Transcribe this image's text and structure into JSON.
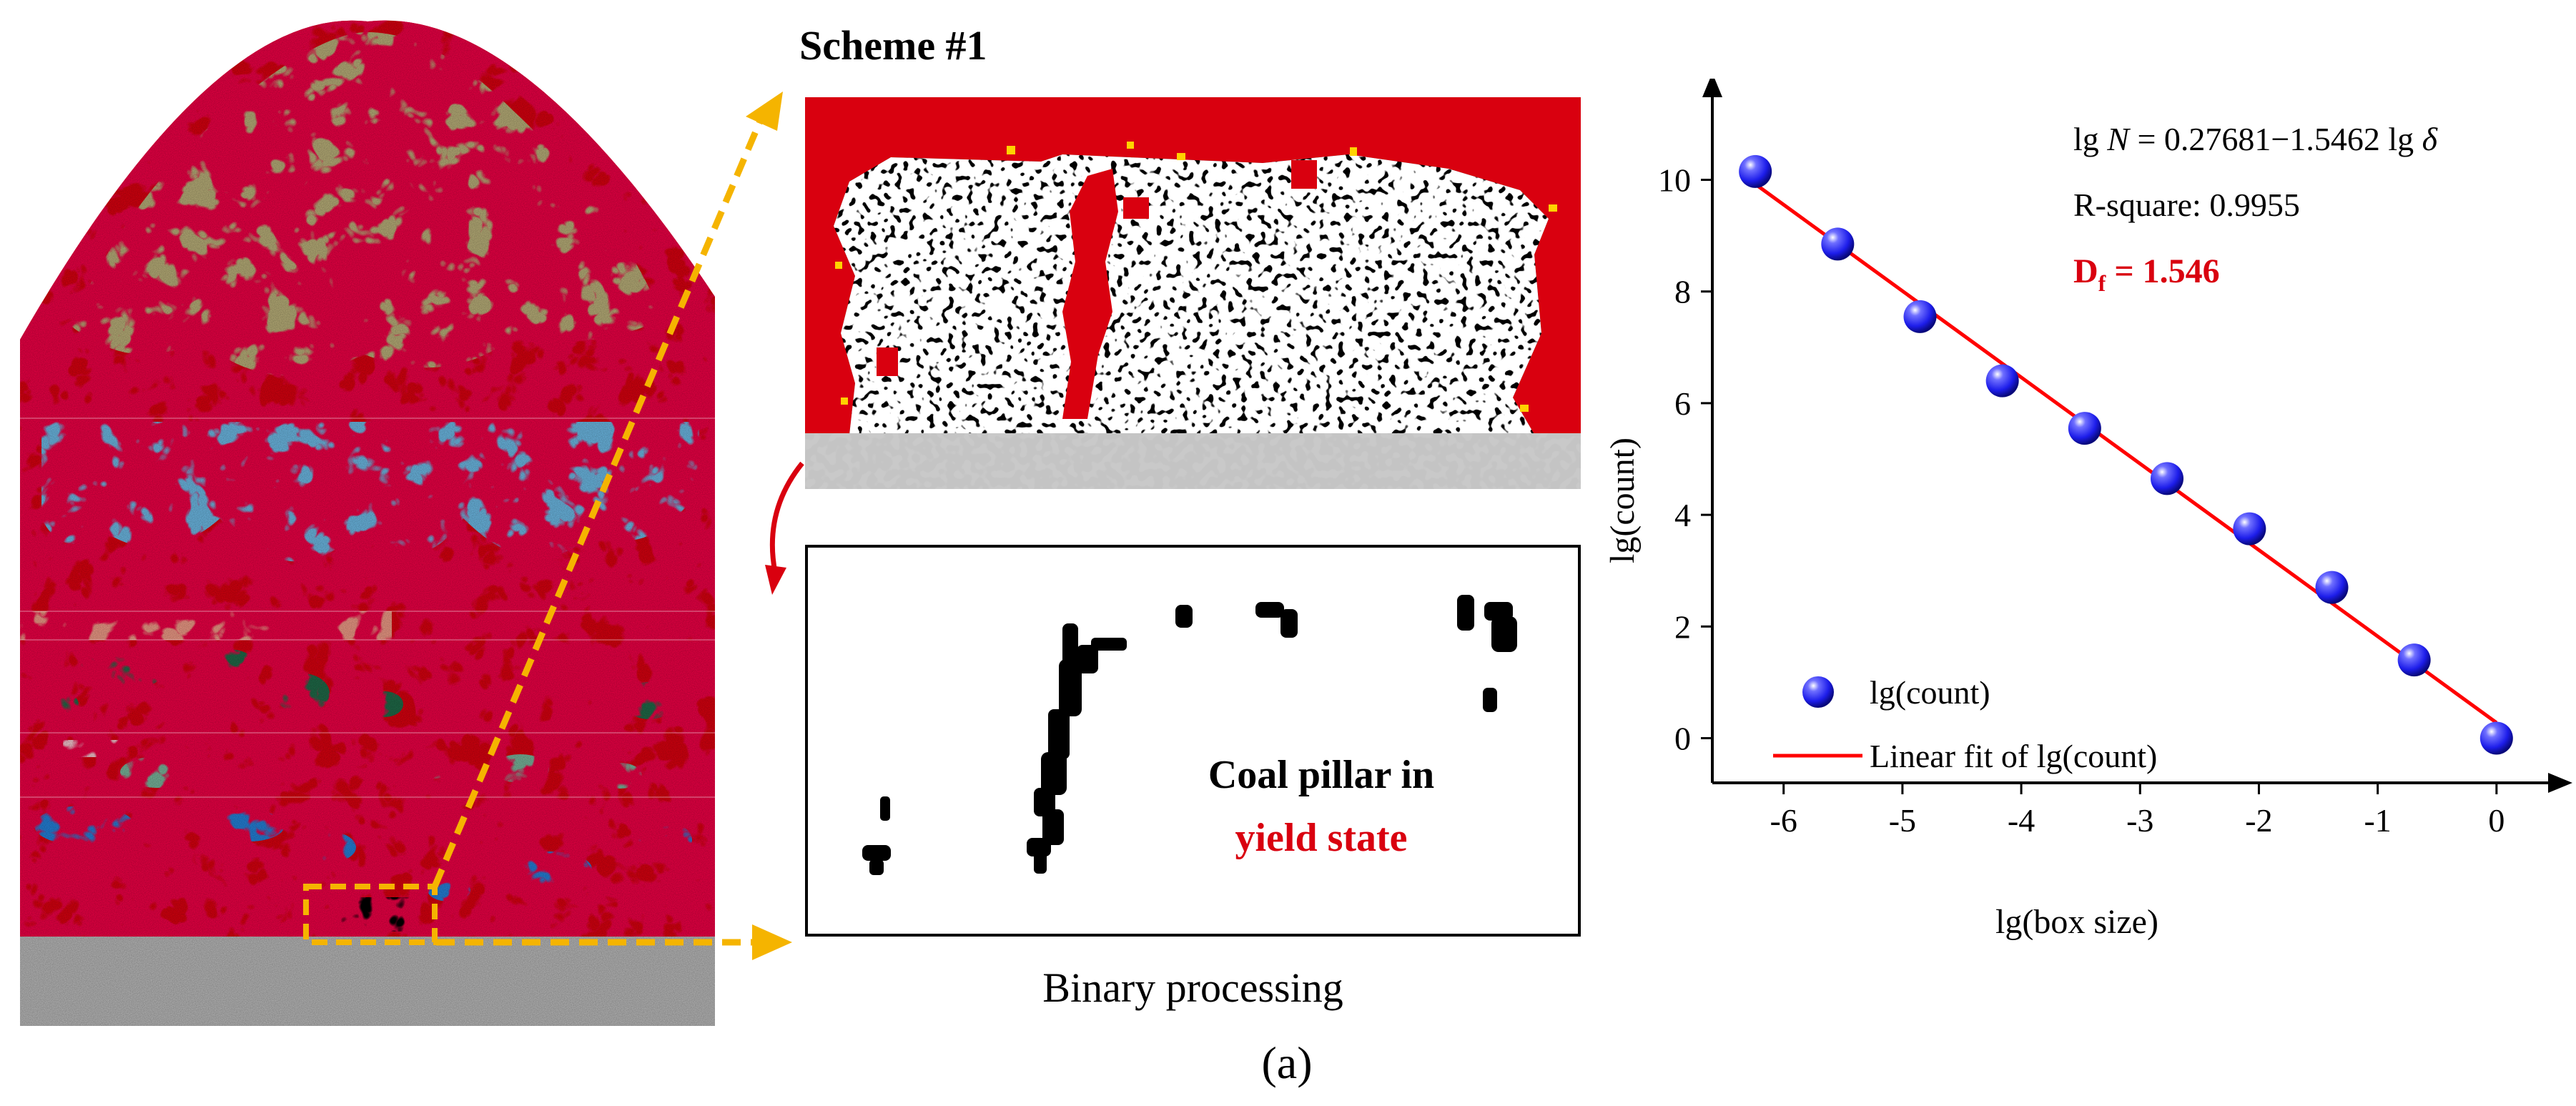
{
  "figure": {
    "scheme_title": "Scheme #1",
    "binary_caption": "Binary processing",
    "pillar_label_line1": "Coal pillar in",
    "pillar_label_line2": "yield state",
    "figure_label": "(a)"
  },
  "colors": {
    "yield_red": "#d9000f",
    "arrow_orange": "#f5b400",
    "top_stratum": "#b8ae78",
    "light_blue_stratum": "#6cb8e3",
    "salmon_stratum": "#ee9a86",
    "dark_green_stratum": "#1f6a48",
    "light_green_stratum": "#78b59a",
    "pink_stratum": "#f2c4cc",
    "blue_stratum": "#2480d8",
    "floor_grey": "#b8b8b8",
    "data_blue": "#1d1dea",
    "fit_red": "#ff0000"
  },
  "chart_data": {
    "type": "scatter",
    "xlabel": "lg(box size)",
    "ylabel": "lg(count)",
    "xlim": [
      -6.6,
      0.35
    ],
    "ylim": [
      -0.8,
      11.3
    ],
    "xticks": [
      -6,
      -5,
      -4,
      -3,
      -2,
      -1,
      0
    ],
    "yticks": [
      0,
      2,
      4,
      6,
      8,
      10
    ],
    "series": [
      {
        "name": "lg(count)",
        "kind": "scatter",
        "x": [
          -6.238,
          -5.545,
          -4.852,
          -4.159,
          -3.466,
          -2.773,
          -2.079,
          -1.386,
          -0.693,
          0
        ],
        "y": [
          10.15,
          8.85,
          7.55,
          6.4,
          5.55,
          4.65,
          3.75,
          2.7,
          1.4,
          0
        ]
      },
      {
        "name": "Linear fit of lg(count)",
        "kind": "line",
        "x": [
          -6.238,
          0
        ],
        "y": [
          9.923,
          0.277
        ]
      }
    ],
    "annotations": {
      "equation": {
        "prefix": "lg ",
        "var_n": "N",
        "middle": " = 0.27681−1.5462 lg ",
        "var_delta": "δ"
      },
      "r_square": "R-square: 0.9955",
      "df_symbol": "D",
      "df_sub": "f",
      "df_value": " = 1.546"
    },
    "legend": {
      "position": "bottom-left",
      "entries": [
        "lg(count)",
        "Linear fit of lg(count)"
      ]
    }
  }
}
